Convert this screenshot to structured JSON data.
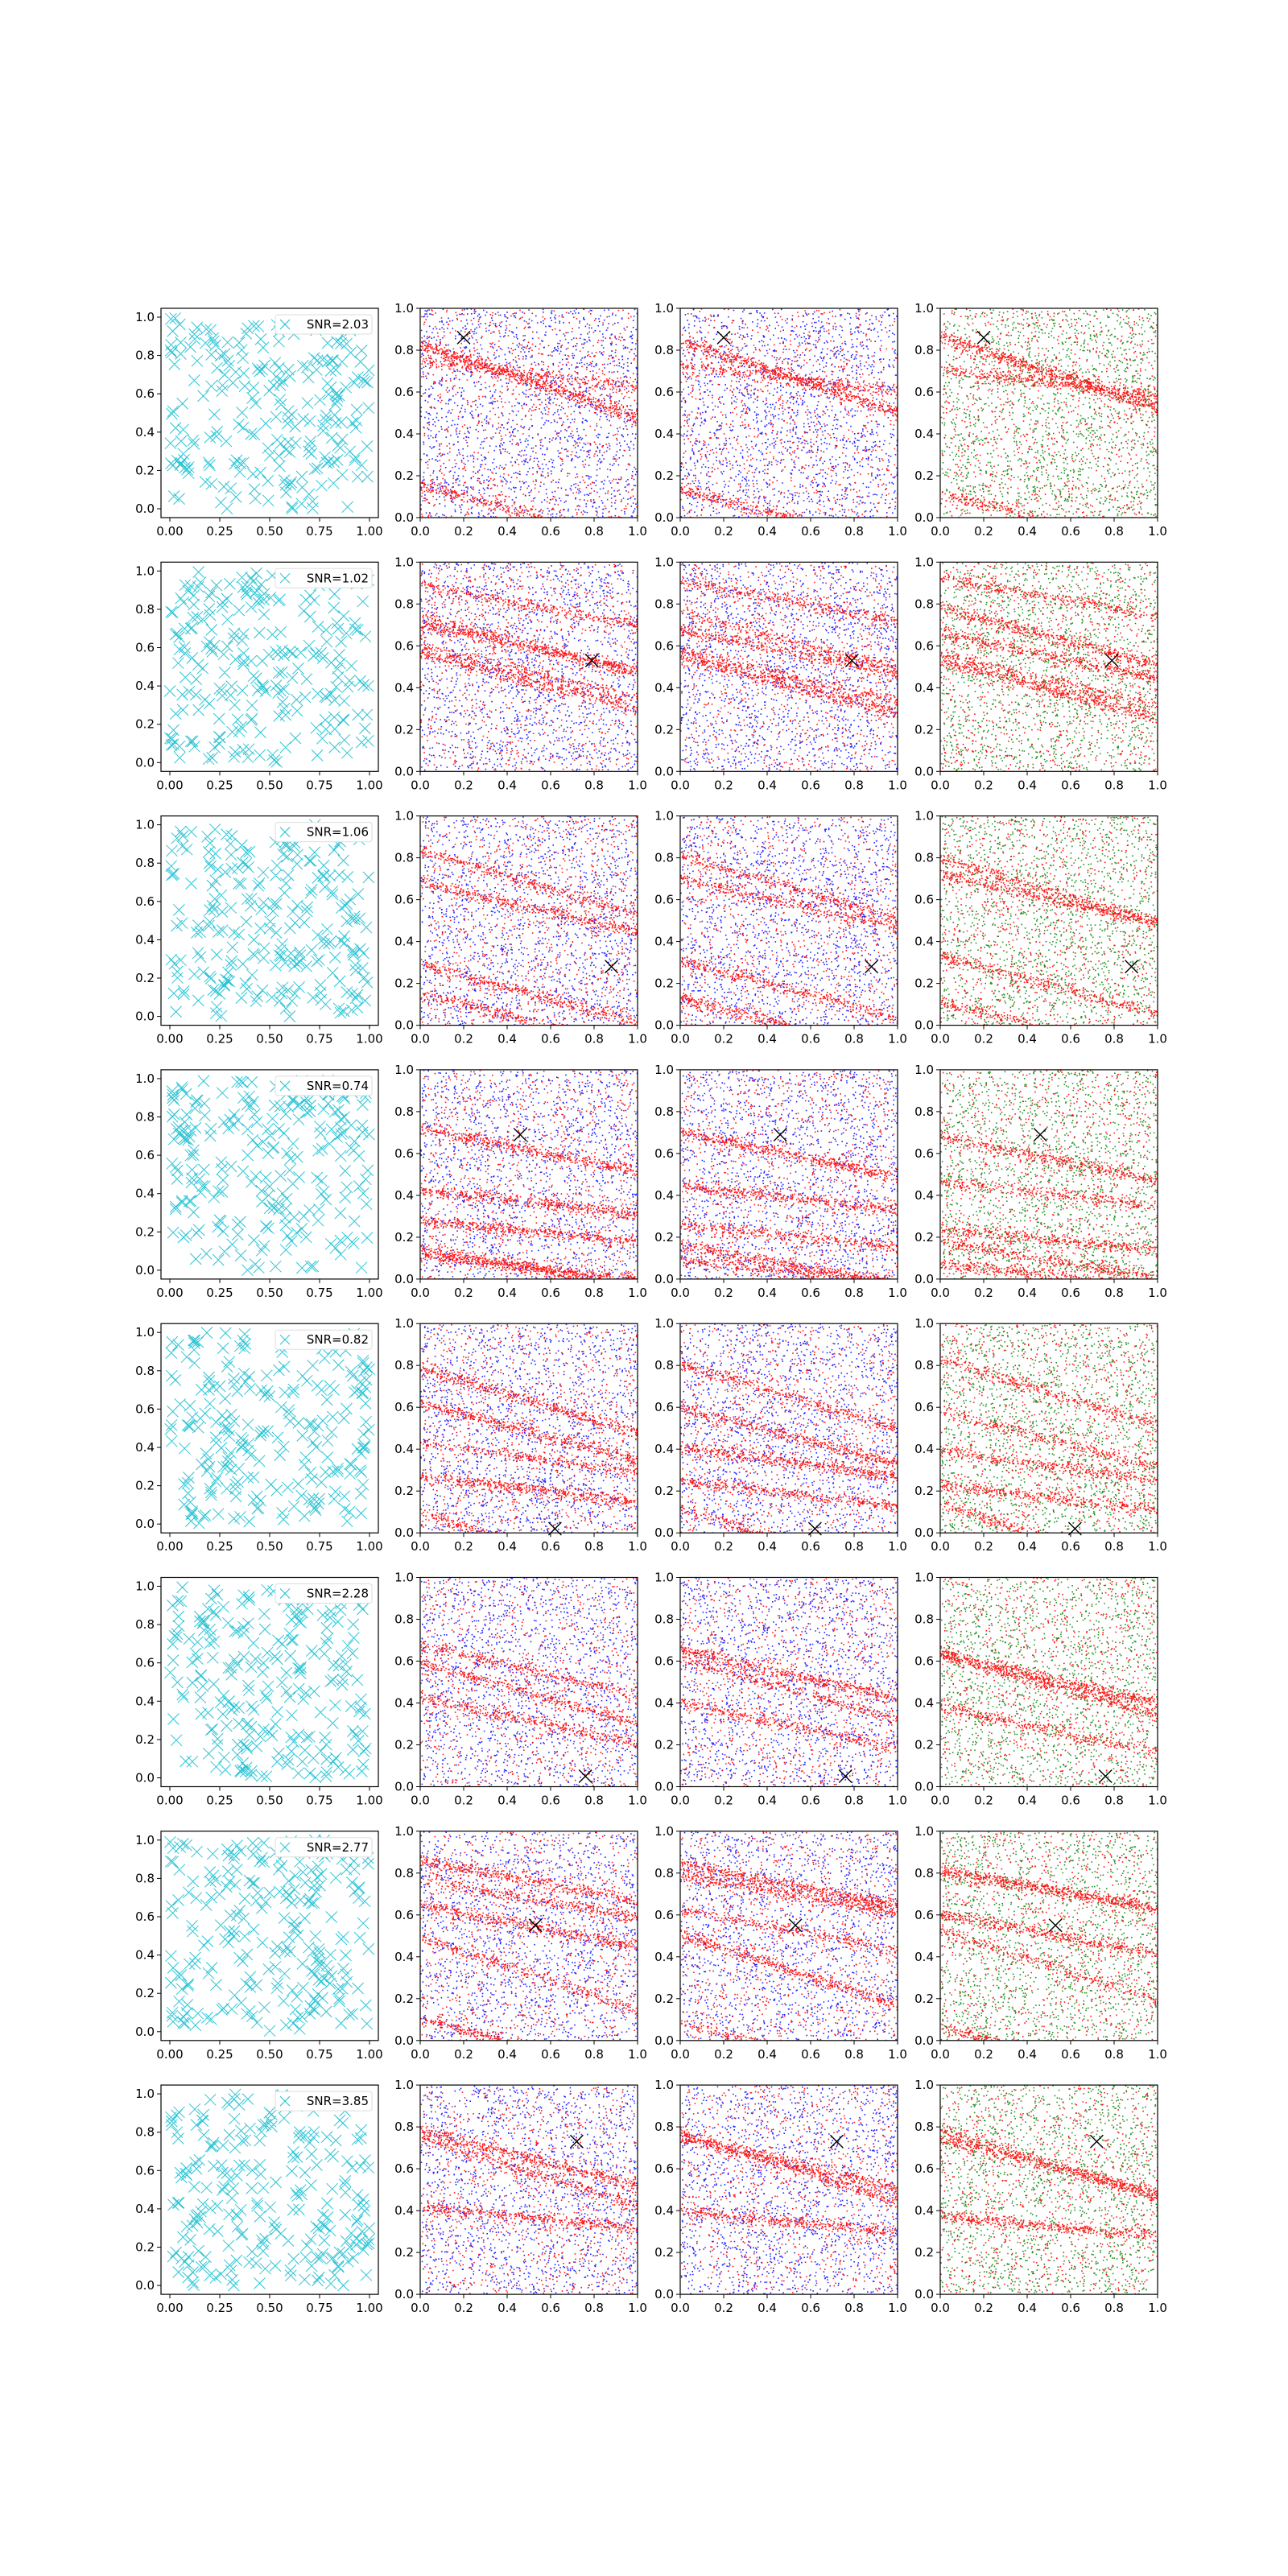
{
  "figure": {
    "rows": 8,
    "cols": 4,
    "column_types": [
      "cross-scatter",
      "red-blue-scatter",
      "red-blue-scatter",
      "red-green-scatter"
    ]
  },
  "colors": {
    "cyan": "#17becf",
    "red": "#ff0000",
    "blue": "#0000ff",
    "green": "#008000",
    "marker": "#000000"
  },
  "chart_data": {
    "type": "scatter",
    "xlim": [
      0.0,
      1.0
    ],
    "ylim": [
      0.0,
      1.0
    ],
    "grid": false,
    "legend_placement": "upper right",
    "col1_xticks": [
      "0.00",
      "0.25",
      "0.50",
      "0.75",
      "1.00"
    ],
    "col1_yticks": [
      "0.0",
      "0.2",
      "0.4",
      "0.6",
      "0.8",
      "1.0"
    ],
    "other_xticks": [
      "0.0",
      "0.2",
      "0.4",
      "0.6",
      "0.8",
      "1.0"
    ],
    "other_yticks": [
      "0.0",
      "0.2",
      "0.4",
      "0.6",
      "0.8",
      "1.0"
    ],
    "rows": [
      {
        "snr_label": "SNR=2.03",
        "marker": [
          0.2,
          0.86
        ]
      },
      {
        "snr_label": "SNR=1.02",
        "marker": [
          0.79,
          0.53
        ]
      },
      {
        "snr_label": "SNR=1.06",
        "marker": [
          0.88,
          0.28
        ]
      },
      {
        "snr_label": "SNR=0.74",
        "marker": [
          0.46,
          0.69
        ]
      },
      {
        "snr_label": "SNR=0.82",
        "marker": [
          0.62,
          0.02
        ]
      },
      {
        "snr_label": "SNR=2.28",
        "marker": [
          0.76,
          0.05
        ]
      },
      {
        "snr_label": "SNR=2.77",
        "marker": [
          0.53,
          0.55
        ]
      },
      {
        "snr_label": "SNR=3.85",
        "marker": [
          0.72,
          0.73
        ]
      }
    ]
  }
}
